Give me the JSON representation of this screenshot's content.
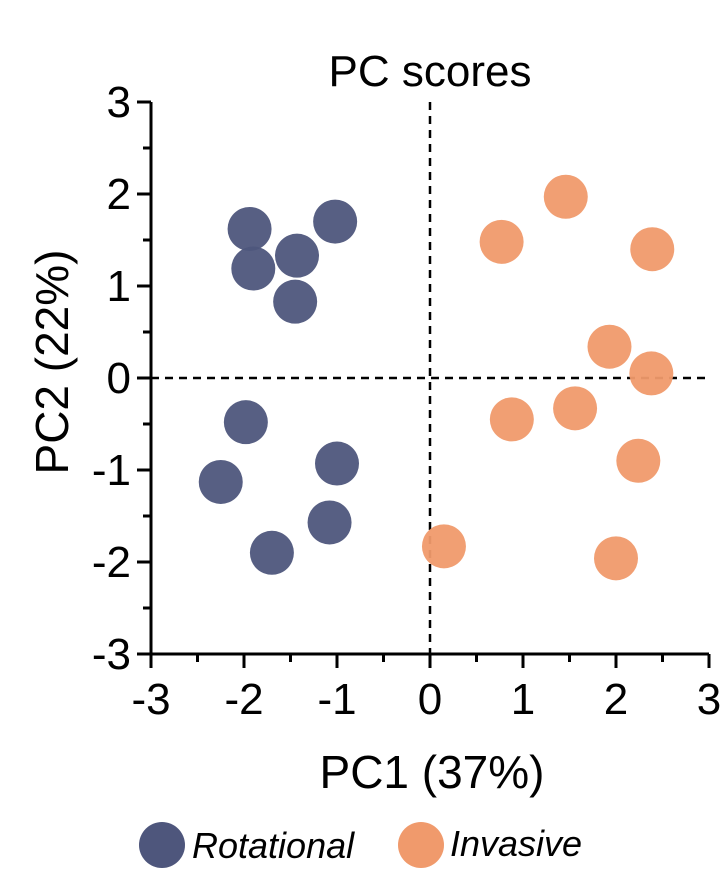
{
  "chart_data": {
    "type": "scatter",
    "title": "PC scores",
    "xlabel": "PC1 (37%)",
    "ylabel": "PC2 (22%)",
    "xlim": [
      -3,
      3
    ],
    "ylim": [
      -3,
      3
    ],
    "xticks": [
      "-3",
      "-2",
      "-1",
      "0",
      "1",
      "2",
      "3"
    ],
    "yticks": [
      "-3",
      "-2",
      "-1",
      "0",
      "1",
      "2",
      "3"
    ],
    "reference_lines": {
      "x": 0,
      "y": 0,
      "style": "dashed"
    },
    "grid": false,
    "legend_position": "bottom",
    "series": [
      {
        "name": "Rotational",
        "color": "#4e567c",
        "points": [
          {
            "x": -1.94,
            "y": 1.62
          },
          {
            "x": -1.02,
            "y": 1.7
          },
          {
            "x": -1.43,
            "y": 1.33
          },
          {
            "x": -1.9,
            "y": 1.19
          },
          {
            "x": -1.45,
            "y": 0.83
          },
          {
            "x": -1.98,
            "y": -0.48
          },
          {
            "x": -1.0,
            "y": -0.93
          },
          {
            "x": -2.25,
            "y": -1.13
          },
          {
            "x": -1.08,
            "y": -1.57
          },
          {
            "x": -1.7,
            "y": -1.9
          }
        ]
      },
      {
        "name": "Invasive",
        "color": "#f09a6c",
        "points": [
          {
            "x": 1.46,
            "y": 1.97
          },
          {
            "x": 0.77,
            "y": 1.48
          },
          {
            "x": 2.39,
            "y": 1.4
          },
          {
            "x": 1.93,
            "y": 0.34
          },
          {
            "x": 2.38,
            "y": 0.05
          },
          {
            "x": 1.56,
            "y": -0.33
          },
          {
            "x": 0.88,
            "y": -0.45
          },
          {
            "x": 2.24,
            "y": -0.9
          },
          {
            "x": 0.15,
            "y": -1.83
          },
          {
            "x": 2.0,
            "y": -1.96
          }
        ]
      }
    ]
  }
}
